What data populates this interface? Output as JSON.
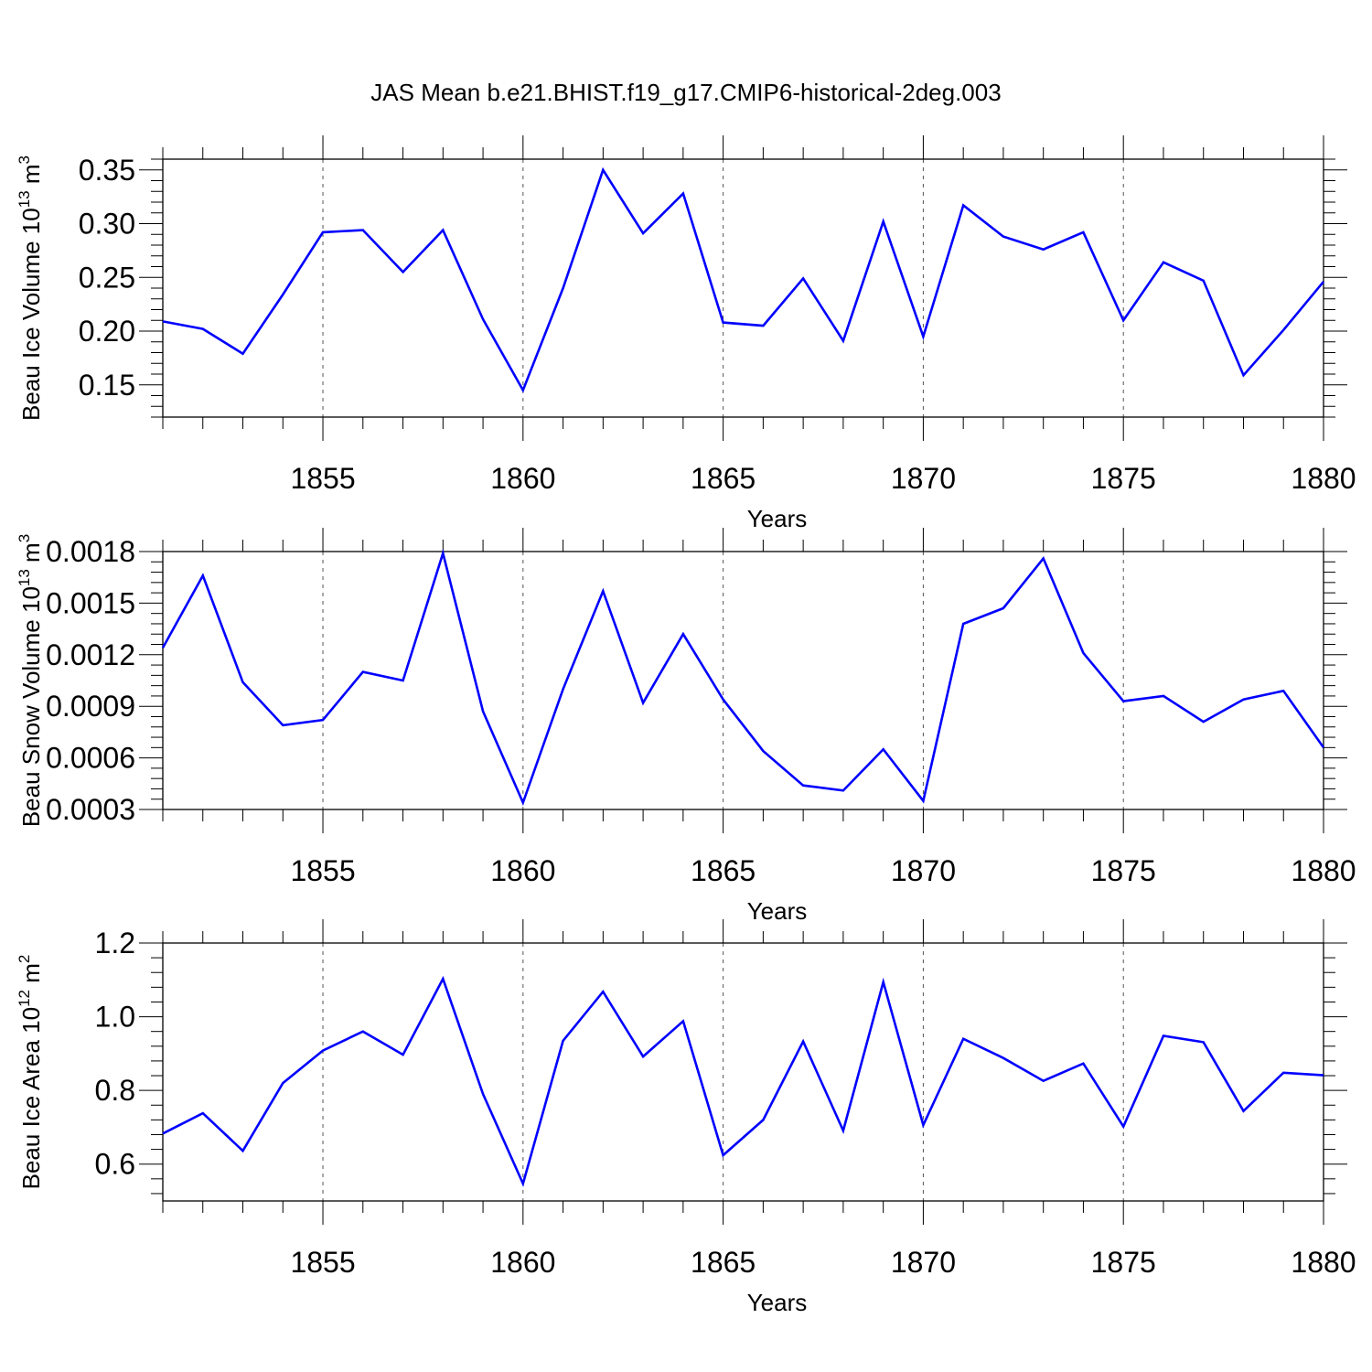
{
  "title": "JAS Mean b.e21.BHIST.f19_g17.CMIP6-historical-2deg.003",
  "colors": {
    "line": "#0000ff",
    "axis": "#000000",
    "grid": "#555555",
    "background": "#ffffff"
  },
  "chart_data": [
    {
      "type": "line",
      "title": "JAS Mean b.e21.BHIST.f19_g17.CMIP6-historical-2deg.003",
      "xlabel": "Years",
      "ylabel": "Beau Ice Volume 10",
      "ylabel_exp": "13",
      "ylabel_unit": "m",
      "ylabel_unit_exp": "3",
      "xlim": [
        1851,
        1880
      ],
      "ylim": [
        0.12,
        0.36
      ],
      "yticks": [
        0.15,
        0.2,
        0.25,
        0.3,
        0.35
      ],
      "ytick_labels": [
        "0.15",
        "0.20",
        "0.25",
        "0.30",
        "0.35"
      ],
      "xticks": [
        1855,
        1860,
        1865,
        1870,
        1875,
        1880
      ],
      "xtick_labels": [
        "1855",
        "1860",
        "1865",
        "1870",
        "1875",
        "1880"
      ],
      "grid": "vertical dashed at major x ticks",
      "x": [
        1851,
        1852,
        1853,
        1854,
        1855,
        1856,
        1857,
        1858,
        1859,
        1860,
        1861,
        1862,
        1863,
        1864,
        1865,
        1866,
        1867,
        1868,
        1869,
        1870,
        1871,
        1872,
        1873,
        1874,
        1875,
        1876,
        1877,
        1878,
        1879,
        1880
      ],
      "series": [
        {
          "name": "Beau Ice Volume",
          "values": [
            0.209,
            0.202,
            0.179,
            0.234,
            0.292,
            0.294,
            0.255,
            0.294,
            0.211,
            0.145,
            0.24,
            0.35,
            0.291,
            0.328,
            0.208,
            0.205,
            0.249,
            0.191,
            0.302,
            0.195,
            0.317,
            0.288,
            0.276,
            0.292,
            0.21,
            0.264,
            0.247,
            0.159,
            0.201,
            0.246
          ]
        }
      ]
    },
    {
      "type": "line",
      "title": "",
      "xlabel": "Years",
      "ylabel": "Beau Snow Volume 10",
      "ylabel_exp": "13",
      "ylabel_unit": "m",
      "ylabel_unit_exp": "3",
      "xlim": [
        1851,
        1880
      ],
      "ylim": [
        0.0003,
        0.0018
      ],
      "yticks": [
        0.0003,
        0.0006,
        0.0009,
        0.0012,
        0.0015,
        0.0018
      ],
      "ytick_labels": [
        "0.0003",
        "0.0006",
        "0.0009",
        "0.0012",
        "0.0015",
        "0.0018"
      ],
      "xticks": [
        1855,
        1860,
        1865,
        1870,
        1875,
        1880
      ],
      "xtick_labels": [
        "1855",
        "1860",
        "1865",
        "1870",
        "1875",
        "1880"
      ],
      "grid": "vertical dashed at major x ticks",
      "x": [
        1851,
        1852,
        1853,
        1854,
        1855,
        1856,
        1857,
        1858,
        1859,
        1860,
        1861,
        1862,
        1863,
        1864,
        1865,
        1866,
        1867,
        1868,
        1869,
        1870,
        1871,
        1872,
        1873,
        1874,
        1875,
        1876,
        1877,
        1878,
        1879,
        1880
      ],
      "series": [
        {
          "name": "Beau Snow Volume",
          "values": [
            0.00124,
            0.00166,
            0.00104,
            0.00079,
            0.00082,
            0.0011,
            0.00105,
            0.00179,
            0.00087,
            0.00034,
            0.001,
            0.00157,
            0.00092,
            0.00132,
            0.00094,
            0.00064,
            0.00044,
            0.00041,
            0.00065,
            0.00035,
            0.00138,
            0.00147,
            0.00176,
            0.00121,
            0.00093,
            0.00096,
            0.00081,
            0.00094,
            0.00099,
            0.00066
          ]
        }
      ]
    },
    {
      "type": "line",
      "title": "",
      "xlabel": "Years",
      "ylabel": "Beau Ice Area 10",
      "ylabel_exp": "12",
      "ylabel_unit": "m",
      "ylabel_unit_exp": "2",
      "xlim": [
        1851,
        1880
      ],
      "ylim": [
        0.5,
        1.2
      ],
      "yticks": [
        0.6,
        0.8,
        1.0,
        1.2
      ],
      "ytick_labels": [
        "0.6",
        "0.8",
        "1.0",
        "1.2"
      ],
      "xticks": [
        1855,
        1860,
        1865,
        1870,
        1875,
        1880
      ],
      "xtick_labels": [
        "1855",
        "1860",
        "1865",
        "1870",
        "1875",
        "1880"
      ],
      "grid": "vertical dashed at major x ticks",
      "x": [
        1851,
        1852,
        1853,
        1854,
        1855,
        1856,
        1857,
        1858,
        1859,
        1860,
        1861,
        1862,
        1863,
        1864,
        1865,
        1866,
        1867,
        1868,
        1869,
        1870,
        1871,
        1872,
        1873,
        1874,
        1875,
        1876,
        1877,
        1878,
        1879,
        1880
      ],
      "series": [
        {
          "name": "Beau Ice Area",
          "values": [
            0.683,
            0.738,
            0.636,
            0.82,
            0.908,
            0.96,
            0.897,
            1.103,
            0.79,
            0.547,
            0.935,
            1.068,
            0.892,
            0.988,
            0.624,
            0.72,
            0.933,
            0.691,
            1.094,
            0.706,
            0.94,
            0.888,
            0.826,
            0.873,
            0.702,
            0.948,
            0.931,
            0.744,
            0.848,
            0.841
          ]
        }
      ]
    }
  ]
}
